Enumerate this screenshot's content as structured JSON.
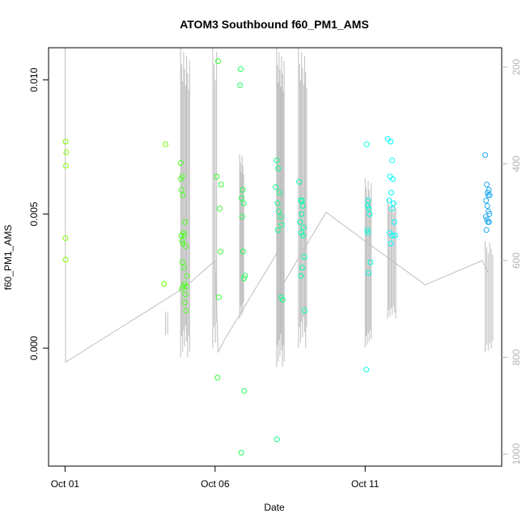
{
  "chart_data": {
    "type": "scatter",
    "title": "ATOM3 Southbound f60_PM1_AMS",
    "xlabel": "Date",
    "ylabel": "f60_PM1_AMS",
    "x_unit": "days after Oct 01",
    "xlim": [
      -0.55,
      14.55
    ],
    "ylim": [
      -0.0044,
      0.0112
    ],
    "x_ticks": [
      {
        "value": 0,
        "label": "Oct 01"
      },
      {
        "value": 5,
        "label": "Oct 06"
      },
      {
        "value": 10,
        "label": "Oct 11"
      }
    ],
    "y_ticks": [
      {
        "value": 0.0,
        "label": "0.000"
      },
      {
        "value": 0.005,
        "label": "0.005"
      },
      {
        "value": 0.01,
        "label": "0.010"
      }
    ],
    "y2_label": "",
    "y2_lim": [
      1025,
      160
    ],
    "y2_ticks": [
      {
        "value": 200,
        "label": "200"
      },
      {
        "value": 400,
        "label": "400"
      },
      {
        "value": 600,
        "label": "600"
      },
      {
        "value": 800,
        "label": "800"
      },
      {
        "value": 1000,
        "label": "1000"
      }
    ],
    "altitude_profile": [
      [
        0.0,
        160
      ],
      [
        0.02,
        810
      ],
      [
        4.0,
        655
      ],
      [
        5.0,
        600
      ],
      [
        5.1,
        790
      ],
      [
        5.3,
        765
      ],
      [
        7.2,
        570
      ],
      [
        7.3,
        645
      ],
      [
        8.7,
        500
      ],
      [
        10.0,
        560
      ],
      [
        12.0,
        650
      ],
      [
        13.9,
        600
      ],
      [
        14.1,
        625
      ]
    ],
    "altitude_traces": [
      {
        "x_start": 3.35,
        "x_end": 3.42,
        "alt_top": 705,
        "alt_bottom": 755,
        "count": 2
      },
      {
        "x_start": 3.85,
        "x_end": 4.15,
        "alt_top": 160,
        "alt_bottom": 800,
        "count": 10
      },
      {
        "x_start": 4.92,
        "x_end": 5.05,
        "alt_top": 160,
        "alt_bottom": 780,
        "count": 4
      },
      {
        "x_start": 5.82,
        "x_end": 5.95,
        "alt_top": 380,
        "alt_bottom": 720,
        "count": 6
      },
      {
        "x_start": 7.05,
        "x_end": 7.3,
        "alt_top": 160,
        "alt_bottom": 820,
        "count": 10
      },
      {
        "x_start": 7.78,
        "x_end": 8.05,
        "alt_top": 160,
        "alt_bottom": 780,
        "count": 9
      },
      {
        "x_start": 10.0,
        "x_end": 10.2,
        "alt_top": 430,
        "alt_bottom": 780,
        "count": 7
      },
      {
        "x_start": 10.75,
        "x_end": 11.02,
        "alt_top": 470,
        "alt_bottom": 720,
        "count": 8
      },
      {
        "x_start": 14.0,
        "x_end": 14.25,
        "alt_top": 560,
        "alt_bottom": 790,
        "count": 6
      }
    ],
    "line_color": "#bebebe",
    "series": [
      {
        "color": "#80ff00",
        "x": [
          0.02,
          0.04,
          0.03,
          0.01,
          0.02
        ],
        "y": [
          0.0077,
          0.0073,
          0.0068,
          0.0041,
          0.0033
        ]
      },
      {
        "color": "#66ff00",
        "x": [
          3.35,
          3.3
        ],
        "y": [
          0.0076,
          0.0024
        ]
      },
      {
        "color": "#4dff22",
        "x": [
          3.85,
          3.9,
          3.88,
          3.92,
          3.87,
          3.95,
          3.9,
          4.0,
          3.93,
          4.02,
          3.97,
          3.91,
          3.96,
          4.05,
          3.98,
          3.94,
          3.89,
          4.01,
          3.99,
          4.03,
          4.04,
          3.86
        ],
        "y": [
          0.0069,
          0.0064,
          0.0059,
          0.0057,
          0.0042,
          0.0043,
          0.004,
          0.0047,
          0.0039,
          0.0038,
          0.0042,
          0.0032,
          0.003,
          0.0027,
          0.0024,
          0.0023,
          0.0022,
          0.002,
          0.0017,
          0.0014,
          0.0023,
          0.0063
        ]
      },
      {
        "color": "#33ff33",
        "x": [
          5.1,
          5.2,
          5.15,
          5.18,
          5.12,
          5.08,
          5.05
        ],
        "y": [
          0.0107,
          0.0061,
          0.0052,
          0.0036,
          0.0019,
          -0.0011,
          0.0064
        ]
      },
      {
        "color": "#22ff55",
        "x": [
          5.85,
          5.83,
          5.92,
          5.88,
          5.95,
          5.9,
          5.93,
          6.0,
          5.96,
          5.87,
          5.97
        ],
        "y": [
          0.0104,
          0.0098,
          0.0059,
          0.0056,
          0.0054,
          0.0049,
          0.0036,
          0.0027,
          0.0026,
          -0.0039,
          -0.0016
        ]
      },
      {
        "color": "#11ff88",
        "x": [
          7.05,
          7.1,
          7.02,
          7.15,
          7.08,
          7.12,
          7.18,
          7.22,
          7.09,
          7.25,
          7.2,
          7.06
        ],
        "y": [
          0.007,
          0.0067,
          0.006,
          0.0058,
          0.0054,
          0.0051,
          0.0049,
          0.0046,
          0.0044,
          0.0018,
          0.0019,
          -0.0034
        ]
      },
      {
        "color": "#00ffaa",
        "x": [
          7.8,
          7.85,
          7.9,
          7.92,
          7.88,
          7.83,
          7.95,
          7.87,
          7.93,
          7.97,
          7.9,
          7.86,
          7.98
        ],
        "y": [
          0.0062,
          0.0055,
          0.0055,
          0.0053,
          0.005,
          0.0047,
          0.0045,
          0.0043,
          0.0042,
          0.0034,
          0.003,
          0.0027,
          0.0014
        ]
      },
      {
        "color": "#00ffdd",
        "x": [
          10.05,
          10.1,
          10.08,
          10.12,
          10.15,
          10.07,
          10.09,
          10.18,
          10.11,
          10.04
        ],
        "y": [
          0.0076,
          0.0055,
          0.0053,
          0.0052,
          0.005,
          0.0044,
          0.0043,
          0.0032,
          0.0028,
          -0.0008
        ]
      },
      {
        "color": "#00ffff",
        "x": [
          10.75,
          10.85,
          10.9,
          10.83,
          10.92,
          10.87,
          10.8,
          10.95,
          10.89,
          10.97,
          10.82,
          11.0,
          10.86,
          10.91
        ],
        "y": [
          0.0078,
          0.0077,
          0.007,
          0.0064,
          0.0063,
          0.0058,
          0.0055,
          0.0054,
          0.0052,
          0.0047,
          0.0043,
          0.0042,
          0.0039,
          0.0042
        ]
      },
      {
        "color": "#22aaee",
        "x": [
          14.0,
          14.05,
          14.08,
          14.12,
          14.1,
          14.15,
          14.03,
          14.07,
          14.11,
          14.14,
          14.02,
          14.06,
          14.09,
          14.13,
          14.04
        ],
        "y": [
          0.0072,
          0.0061,
          0.0058,
          0.0059,
          0.0057,
          0.0057,
          0.0055,
          0.0053,
          0.0051,
          0.005,
          0.0049,
          0.0048,
          0.0047,
          0.0047,
          0.0044
        ]
      }
    ]
  }
}
